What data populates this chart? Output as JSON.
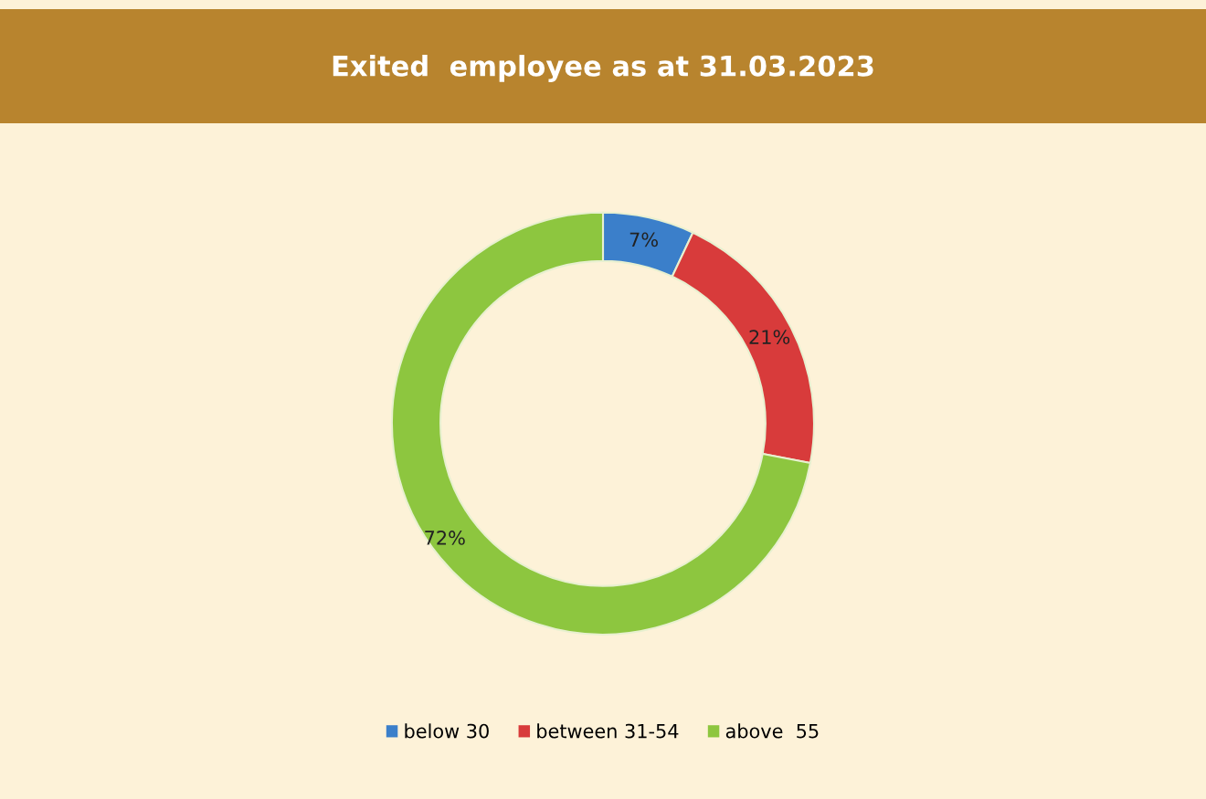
{
  "chart_data": {
    "type": "donut",
    "title": "Exited  employee as at 31.03.2023",
    "categories": [
      "below 30",
      "between 31-54",
      "above  55"
    ],
    "values": [
      7,
      21,
      72
    ],
    "colors": [
      "#3b7fca",
      "#d83b3b",
      "#8dc63f"
    ],
    "value_labels": [
      "7%",
      "21%",
      "72%"
    ],
    "legend": "bottom"
  }
}
